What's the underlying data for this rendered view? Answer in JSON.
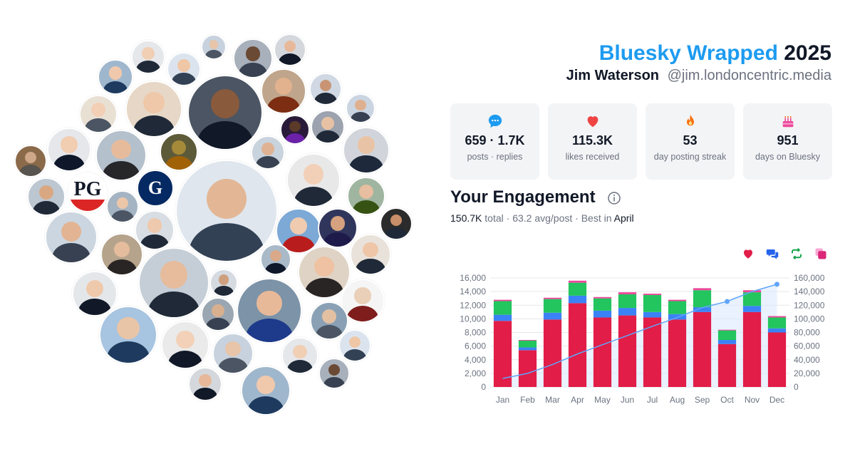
{
  "header": {
    "brand": "Bluesky Wrapped",
    "year": "2025",
    "name": "Jim Waterson",
    "handle": "@jim.londoncentric.media"
  },
  "stats": [
    {
      "icon": "chat-bubble-icon",
      "value": "659 · 1.7K",
      "label": "posts · replies",
      "color": "#1d9bf0"
    },
    {
      "icon": "heart-icon",
      "value": "115.3K",
      "label": "likes received",
      "color": "#ef4444"
    },
    {
      "icon": "flame-icon",
      "value": "53",
      "label": "day posting streak",
      "color": "#f97316"
    },
    {
      "icon": "cake-icon",
      "value": "951",
      "label": "days on Bluesky",
      "color": "#ec4899"
    }
  ],
  "engagement": {
    "title": "Your Engagement",
    "total_value": "150.7K",
    "total_word": "total",
    "avg": "63.2 avg/post",
    "best_prefix": "Best in",
    "best_month": "April"
  },
  "legend": [
    {
      "icon": "heart-icon",
      "color": "#e11d48"
    },
    {
      "icon": "reply-icon",
      "color": "#2563eb"
    },
    {
      "icon": "repost-icon",
      "color": "#16a34a"
    },
    {
      "icon": "quote-icon",
      "color": "#db2777"
    }
  ],
  "chart_data": {
    "type": "bar",
    "stacked": true,
    "categories": [
      "Jan",
      "Feb",
      "Mar",
      "Apr",
      "May",
      "Jun",
      "Jul",
      "Aug",
      "Sep",
      "Oct",
      "Nov",
      "Dec"
    ],
    "series": [
      {
        "values": [
          9700,
          5400,
          9900,
          12300,
          10200,
          10500,
          10200,
          9900,
          11000,
          6300,
          11000,
          8000
        ],
        "color": "#e11d48"
      },
      {
        "values": [
          900,
          400,
          1000,
          1100,
          1000,
          1100,
          800,
          800,
          700,
          600,
          900,
          600
        ],
        "color": "#3b82f6"
      },
      {
        "values": [
          2000,
          1000,
          2000,
          1900,
          1800,
          2000,
          2500,
          1900,
          2500,
          1400,
          2000,
          1600
        ],
        "color": "#22c55e"
      },
      {
        "values": [
          200,
          100,
          200,
          300,
          200,
          300,
          200,
          200,
          300,
          100,
          300,
          200
        ],
        "color": "#ec4899"
      }
    ],
    "cumulative": {
      "values": [
        13000,
        20000,
        33000,
        48500,
        62000,
        75500,
        89000,
        102000,
        116500,
        125500,
        140000,
        150700
      ],
      "color": "#60a5fa"
    },
    "y_left": {
      "min": 0,
      "max": 16000,
      "ticks": [
        "0",
        "2,000",
        "4,000",
        "6,000",
        "8,000",
        "10,000",
        "12,000",
        "14,000",
        "16,000"
      ]
    },
    "y_right": {
      "min": 0,
      "max": 160000,
      "ticks": [
        "0",
        "20,000",
        "40,000",
        "60,000",
        "80,000",
        "100,000",
        "120,000",
        "140,000",
        "160,000"
      ]
    },
    "grid": true
  },
  "avatars": [
    {
      "skin": "#e8c4a8",
      "bg": "#c7d2de",
      "shirt": "#4b5563"
    },
    {
      "skin": "#f0cfb4",
      "bg": "#e5e7eb",
      "shirt": "#1f2937"
    },
    {
      "skin": "#efc7a6",
      "bg": "#dbe4ee",
      "shirt": "#334155"
    },
    {
      "skin": "#6b4a35",
      "bg": "#a7b0bb",
      "shirt": "#374151"
    },
    {
      "skin": "#e7b99a",
      "bg": "#d4d8dd",
      "shirt": "#111827"
    },
    {
      "skin": "#f0c9ad",
      "bg": "#9fb7cc",
      "shirt": "#1e3a5f"
    },
    {
      "skin": "#e2b28f",
      "bg": "#bfa58b",
      "shirt": "#7c2d12"
    },
    {
      "skin": "#c99473",
      "bg": "#cfd8e3",
      "shirt": "#1f2937"
    },
    {
      "skin": "#8a5a3c",
      "bg": "#4b5563",
      "shirt": "#111827"
    },
    {
      "skin": "#efc8a9",
      "bg": "#e6d7c6",
      "shirt": "#1f2937"
    },
    {
      "skin": "#f3cfb6",
      "bg": "#e9e0d4",
      "shirt": "#4b5563"
    },
    {
      "skin": "#deb08f",
      "bg": "#cbd5e1",
      "shirt": "#374151"
    },
    {
      "skin": "#5b3a29",
      "bg": "#2a1a3a",
      "shirt": "#6b21a8"
    },
    {
      "skin": "#e8c1a4",
      "bg": "#9ca3af",
      "shirt": "#1f2937"
    },
    {
      "skin": "#f1cdb2",
      "bg": "#e5e7eb",
      "shirt": "#0f172a"
    },
    {
      "skin": "#e6bb9c",
      "bg": "#b4c0cc",
      "shirt": "#27272a"
    },
    {
      "skin": "#a58a3a",
      "bg": "#5d5a3a",
      "shirt": "#a16207"
    },
    {
      "skin": "#dfb293",
      "bg": "#c9d3dd",
      "shirt": "#374151"
    },
    {
      "skin": "#e9c3a6",
      "bg": "#d1d5db",
      "shirt": "#1e293b"
    },
    {
      "skin": "#cfa789",
      "bg": "#8b6a4a",
      "shirt": "#57534e"
    },
    {
      "skin": "#f2d0b7",
      "bg": "#e8e8e8",
      "shirt": "#1f2937"
    },
    {
      "skin": "#e3b795",
      "bg": "#dfe6ed",
      "shirt": "#334155"
    },
    {
      "skin": "#d9a882",
      "bg": "#bcc7d2",
      "shirt": "#1f2937"
    },
    {
      "skin": "#ecc6a8",
      "bg": "#a5b4c3",
      "shirt": "#4b5563"
    },
    {
      "skin": "#e7be9f",
      "bg": "#9fb5a0",
      "shirt": "#365314"
    },
    {
      "skin": "#c98f6a",
      "bg": "#2b2b2b",
      "shirt": "#1f2937"
    },
    {
      "skin": "#eec9ae",
      "bg": "#d7dde3",
      "shirt": "#1f2937"
    },
    {
      "skin": "#e2b493",
      "bg": "#ccd6e0",
      "shirt": "#374151"
    },
    {
      "skin": "#f0cbb0",
      "bg": "#7ca9d6",
      "shirt": "#b91c1c"
    },
    {
      "skin": "#d5a17e",
      "bg": "#30355c",
      "shirt": "#1e1b4b"
    },
    {
      "skin": "#e5bd9d",
      "bg": "#b6a38c",
      "shirt": "#292524"
    },
    {
      "skin": "#efc6a8",
      "bg": "#e8e2da",
      "shirt": "#1f2937"
    },
    {
      "skin": "#d9a989",
      "bg": "#a9b9c8",
      "shirt": "#0f172a"
    },
    {
      "skin": "#e6bc9c",
      "bg": "#c5ced7",
      "shirt": "#1f2937"
    },
    {
      "skin": "#eec2a2",
      "bg": "#dfd3c5",
      "shirt": "#292524"
    },
    {
      "skin": "#cfa07f",
      "bg": "#d5dbe1",
      "shirt": "#1f2937"
    },
    {
      "skin": "#efc9ab",
      "bg": "#e4e7ea",
      "shirt": "#111827"
    },
    {
      "skin": "#e8b999",
      "bg": "#7c93a8",
      "shirt": "#1e3a8a"
    },
    {
      "skin": "#ead0b8",
      "bg": "#f5f5f5",
      "shirt": "#7f1d1d"
    },
    {
      "skin": "#d8b08f",
      "bg": "#9aa6b2",
      "shirt": "#374151"
    },
    {
      "skin": "#e4c0a2",
      "bg": "#8aa1b5",
      "shirt": "#4b5563"
    },
    {
      "skin": "#e9c5a8",
      "bg": "#a7c4e0",
      "shirt": "#1e3a5f"
    },
    {
      "skin": "#f2d1b8",
      "bg": "#eaeaea",
      "shirt": "#111827"
    }
  ],
  "logos": [
    {
      "text": "PG",
      "color": "#111827",
      "bg": "#ffffff",
      "band": "#dc2626",
      "icon": "pg-logo-icon"
    },
    {
      "text": "G",
      "color": "#ffffff",
      "bg": "#052962",
      "icon": "guardian-logo-icon"
    }
  ]
}
